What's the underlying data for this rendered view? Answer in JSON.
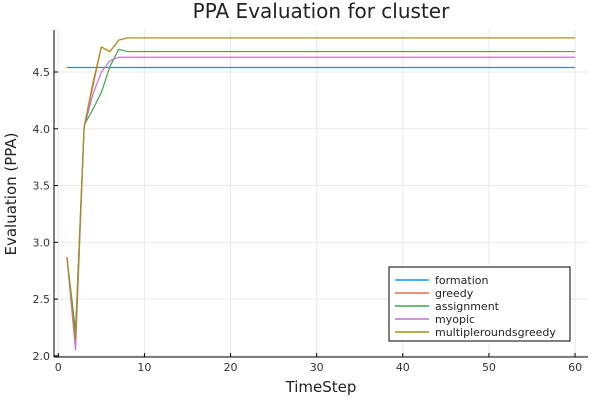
{
  "chart_data": {
    "type": "line",
    "title": "PPA Evaluation for cluster",
    "xlabel": "TimeStep",
    "ylabel": "Evaluation (PPA)",
    "xlim": [
      -0.5,
      61.5
    ],
    "ylim": [
      1.99,
      4.87
    ],
    "xticks": [
      0,
      10,
      20,
      30,
      40,
      50,
      60
    ],
    "yticks": [
      2.0,
      2.5,
      3.0,
      3.5,
      4.0,
      4.5
    ],
    "ytick_labels": [
      "2.0",
      "2.5",
      "3.0",
      "3.5",
      "4.0",
      "4.5"
    ],
    "grid": true,
    "legend_position": "bottom-right",
    "series": [
      {
        "name": "formation",
        "color": "#009AFA",
        "points": [
          [
            1,
            4.54
          ],
          [
            60,
            4.54
          ]
        ]
      },
      {
        "name": "greedy",
        "color": "#E36F47",
        "points": [
          [
            1,
            2.87
          ],
          [
            2,
            2.2
          ],
          [
            3,
            4.02
          ],
          [
            4,
            4.37
          ],
          [
            5,
            4.72
          ],
          [
            6,
            4.68
          ],
          [
            7,
            4.78
          ],
          [
            8,
            4.8
          ],
          [
            60,
            4.8
          ]
        ]
      },
      {
        "name": "assignment",
        "color": "#3EA44E",
        "points": [
          [
            1,
            2.87
          ],
          [
            2,
            2.22
          ],
          [
            3,
            4.03
          ],
          [
            4,
            4.17
          ],
          [
            5,
            4.32
          ],
          [
            6,
            4.55
          ],
          [
            7,
            4.7
          ],
          [
            8,
            4.68
          ],
          [
            60,
            4.68
          ]
        ]
      },
      {
        "name": "myopic",
        "color": "#C371D2",
        "points": [
          [
            1,
            2.87
          ],
          [
            2,
            2.05
          ],
          [
            3,
            4.01
          ],
          [
            4,
            4.3
          ],
          [
            5,
            4.5
          ],
          [
            6,
            4.6
          ],
          [
            7,
            4.63
          ],
          [
            8,
            4.63
          ],
          [
            60,
            4.63
          ]
        ]
      },
      {
        "name": "multipleroundsgreedy",
        "color": "#AC8D18",
        "points": [
          [
            1,
            2.87
          ],
          [
            2,
            2.15
          ],
          [
            3,
            4.02
          ],
          [
            4,
            4.4
          ],
          [
            5,
            4.72
          ],
          [
            6,
            4.68
          ],
          [
            7,
            4.78
          ],
          [
            8,
            4.8
          ],
          [
            60,
            4.8
          ]
        ]
      }
    ]
  }
}
